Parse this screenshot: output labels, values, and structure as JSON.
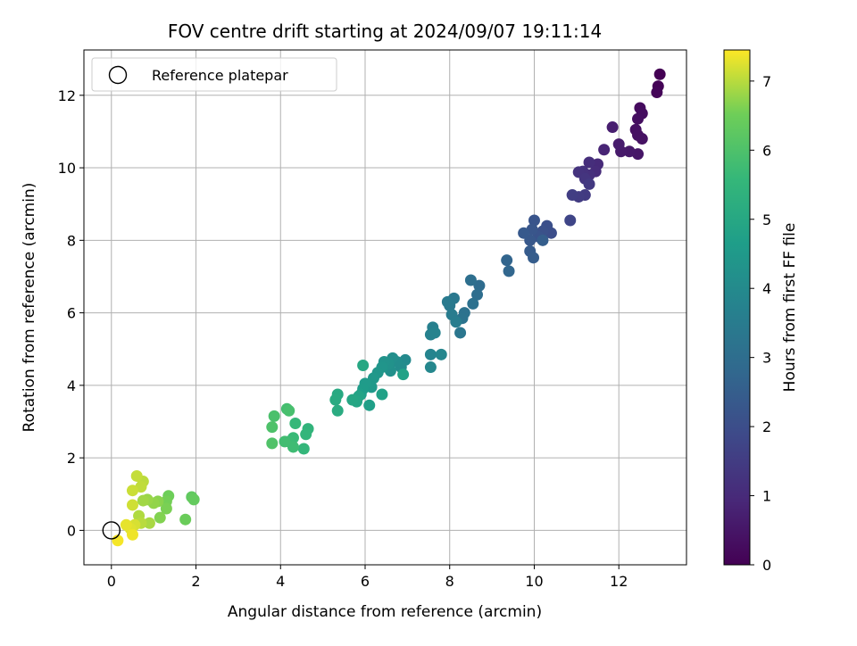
{
  "chart_data": {
    "type": "scatter",
    "title": "FOV centre drift starting at 2024/09/07 19:11:14",
    "xlabel": "Angular distance from reference (arcmin)",
    "ylabel": "Rotation from reference (arcmin)",
    "xlim": [
      -0.65,
      13.6
    ],
    "ylim": [
      -0.95,
      13.25
    ],
    "xticks": [
      0,
      2,
      4,
      6,
      8,
      10,
      12
    ],
    "yticks": [
      0,
      2,
      4,
      6,
      8,
      10,
      12
    ],
    "grid": true,
    "legend": {
      "placement": "top-left",
      "entries": [
        {
          "label": "Reference platepar",
          "marker": "open-circle"
        }
      ]
    },
    "reference_point": {
      "x": 0,
      "y": 0
    },
    "colorbar": {
      "label": "Hours from first FF file",
      "colormap": "viridis",
      "range": [
        0,
        7.45
      ],
      "ticks": [
        0,
        1,
        2,
        3,
        4,
        5,
        6,
        7
      ]
    },
    "series": [
      {
        "points": [
          {
            "x": 12.97,
            "y": 12.58,
            "c": 0.0
          },
          {
            "x": 12.93,
            "y": 12.25,
            "c": 0.05
          },
          {
            "x": 12.9,
            "y": 12.08,
            "c": 0.1
          },
          {
            "x": 12.5,
            "y": 11.65,
            "c": 0.25
          },
          {
            "x": 12.55,
            "y": 11.5,
            "c": 0.28
          },
          {
            "x": 12.45,
            "y": 11.35,
            "c": 0.3
          },
          {
            "x": 12.4,
            "y": 11.05,
            "c": 0.35
          },
          {
            "x": 12.45,
            "y": 10.9,
            "c": 0.38
          },
          {
            "x": 12.55,
            "y": 10.8,
            "c": 0.4
          },
          {
            "x": 12.45,
            "y": 10.38,
            "c": 0.5
          },
          {
            "x": 12.25,
            "y": 10.45,
            "c": 0.55
          },
          {
            "x": 12.05,
            "y": 10.45,
            "c": 0.6
          },
          {
            "x": 12.0,
            "y": 10.65,
            "c": 0.65
          },
          {
            "x": 11.85,
            "y": 11.12,
            "c": 0.7
          },
          {
            "x": 11.65,
            "y": 10.5,
            "c": 0.85
          },
          {
            "x": 11.5,
            "y": 10.1,
            "c": 1.0
          },
          {
            "x": 11.45,
            "y": 9.9,
            "c": 1.05
          },
          {
            "x": 11.3,
            "y": 10.15,
            "c": 1.1
          },
          {
            "x": 11.3,
            "y": 9.8,
            "c": 1.15
          },
          {
            "x": 11.15,
            "y": 9.9,
            "c": 1.2
          },
          {
            "x": 11.05,
            "y": 9.88,
            "c": 1.25
          },
          {
            "x": 11.2,
            "y": 9.7,
            "c": 1.3
          },
          {
            "x": 11.3,
            "y": 9.55,
            "c": 1.4
          },
          {
            "x": 11.2,
            "y": 9.25,
            "c": 1.45
          },
          {
            "x": 11.05,
            "y": 9.2,
            "c": 1.5
          },
          {
            "x": 10.9,
            "y": 9.25,
            "c": 1.55
          },
          {
            "x": 10.85,
            "y": 8.55,
            "c": 1.75
          },
          {
            "x": 10.4,
            "y": 8.2,
            "c": 2.0
          },
          {
            "x": 10.3,
            "y": 8.4,
            "c": 2.05
          },
          {
            "x": 10.2,
            "y": 8.25,
            "c": 2.1
          },
          {
            "x": 10.1,
            "y": 8.1,
            "c": 2.15
          },
          {
            "x": 10.0,
            "y": 8.55,
            "c": 2.2
          },
          {
            "x": 9.95,
            "y": 8.3,
            "c": 2.25
          },
          {
            "x": 9.9,
            "y": 8.0,
            "c": 2.3
          },
          {
            "x": 9.75,
            "y": 8.2,
            "c": 2.35
          },
          {
            "x": 9.9,
            "y": 7.7,
            "c": 2.4
          },
          {
            "x": 9.98,
            "y": 7.52,
            "c": 2.45
          },
          {
            "x": 10.2,
            "y": 8.0,
            "c": 2.5
          },
          {
            "x": 9.35,
            "y": 7.45,
            "c": 2.7
          },
          {
            "x": 9.4,
            "y": 7.15,
            "c": 2.75
          },
          {
            "x": 8.7,
            "y": 6.75,
            "c": 2.95
          },
          {
            "x": 8.65,
            "y": 6.5,
            "c": 3.0
          },
          {
            "x": 8.5,
            "y": 6.9,
            "c": 3.05
          },
          {
            "x": 8.55,
            "y": 6.25,
            "c": 3.1
          },
          {
            "x": 8.35,
            "y": 6.0,
            "c": 3.15
          },
          {
            "x": 8.3,
            "y": 5.85,
            "c": 3.2
          },
          {
            "x": 8.25,
            "y": 5.45,
            "c": 3.3
          },
          {
            "x": 8.1,
            "y": 6.4,
            "c": 3.35
          },
          {
            "x": 8.0,
            "y": 6.2,
            "c": 3.4
          },
          {
            "x": 7.95,
            "y": 6.3,
            "c": 3.45
          },
          {
            "x": 8.05,
            "y": 5.95,
            "c": 3.5
          },
          {
            "x": 8.15,
            "y": 5.75,
            "c": 3.55
          },
          {
            "x": 7.6,
            "y": 5.6,
            "c": 3.65
          },
          {
            "x": 7.55,
            "y": 5.4,
            "c": 3.7
          },
          {
            "x": 7.65,
            "y": 5.45,
            "c": 3.75
          },
          {
            "x": 7.55,
            "y": 4.85,
            "c": 3.8
          },
          {
            "x": 7.8,
            "y": 4.85,
            "c": 3.85
          },
          {
            "x": 7.55,
            "y": 4.5,
            "c": 3.9
          },
          {
            "x": 6.95,
            "y": 4.7,
            "c": 4.0
          },
          {
            "x": 6.85,
            "y": 4.5,
            "c": 4.05
          },
          {
            "x": 6.75,
            "y": 4.65,
            "c": 4.1
          },
          {
            "x": 6.65,
            "y": 4.75,
            "c": 4.15
          },
          {
            "x": 6.6,
            "y": 4.4,
            "c": 4.2
          },
          {
            "x": 6.55,
            "y": 4.6,
            "c": 4.25
          },
          {
            "x": 6.45,
            "y": 4.65,
            "c": 4.3
          },
          {
            "x": 6.4,
            "y": 4.5,
            "c": 4.35
          },
          {
            "x": 6.3,
            "y": 4.35,
            "c": 4.4
          },
          {
            "x": 6.2,
            "y": 4.2,
            "c": 4.45
          },
          {
            "x": 6.15,
            "y": 3.95,
            "c": 4.5
          },
          {
            "x": 6.0,
            "y": 4.05,
            "c": 4.55
          },
          {
            "x": 5.95,
            "y": 3.9,
            "c": 4.6
          },
          {
            "x": 5.9,
            "y": 3.75,
            "c": 4.65
          },
          {
            "x": 6.1,
            "y": 3.45,
            "c": 4.7
          },
          {
            "x": 6.4,
            "y": 3.75,
            "c": 4.75
          },
          {
            "x": 6.9,
            "y": 4.3,
            "c": 4.8
          },
          {
            "x": 5.85,
            "y": 3.7,
            "c": 4.85
          },
          {
            "x": 5.8,
            "y": 3.55,
            "c": 4.9
          },
          {
            "x": 5.7,
            "y": 3.6,
            "c": 4.95
          },
          {
            "x": 5.95,
            "y": 4.55,
            "c": 5.0
          },
          {
            "x": 5.35,
            "y": 3.75,
            "c": 5.05
          },
          {
            "x": 5.3,
            "y": 3.6,
            "c": 5.1
          },
          {
            "x": 5.35,
            "y": 3.3,
            "c": 5.15
          },
          {
            "x": 4.65,
            "y": 2.8,
            "c": 5.45
          },
          {
            "x": 4.6,
            "y": 2.65,
            "c": 5.5
          },
          {
            "x": 4.55,
            "y": 2.25,
            "c": 5.55
          },
          {
            "x": 4.35,
            "y": 2.95,
            "c": 5.6
          },
          {
            "x": 4.3,
            "y": 2.55,
            "c": 5.65
          },
          {
            "x": 4.2,
            "y": 2.45,
            "c": 5.7
          },
          {
            "x": 4.3,
            "y": 2.3,
            "c": 5.75
          },
          {
            "x": 4.1,
            "y": 2.45,
            "c": 5.8
          },
          {
            "x": 4.15,
            "y": 3.35,
            "c": 5.85
          },
          {
            "x": 4.2,
            "y": 3.3,
            "c": 5.9
          },
          {
            "x": 3.85,
            "y": 3.15,
            "c": 5.95
          },
          {
            "x": 3.8,
            "y": 2.85,
            "c": 6.0
          },
          {
            "x": 3.8,
            "y": 2.4,
            "c": 6.05
          },
          {
            "x": 1.9,
            "y": 0.92,
            "c": 6.3
          },
          {
            "x": 1.95,
            "y": 0.85,
            "c": 6.35
          },
          {
            "x": 1.75,
            "y": 0.3,
            "c": 6.45
          },
          {
            "x": 1.35,
            "y": 0.95,
            "c": 6.5
          },
          {
            "x": 1.3,
            "y": 0.8,
            "c": 6.55
          },
          {
            "x": 1.3,
            "y": 0.6,
            "c": 6.6
          },
          {
            "x": 1.15,
            "y": 0.35,
            "c": 6.65
          },
          {
            "x": 1.1,
            "y": 0.8,
            "c": 6.7
          },
          {
            "x": 1.0,
            "y": 0.75,
            "c": 6.75
          },
          {
            "x": 0.85,
            "y": 0.85,
            "c": 6.8
          },
          {
            "x": 0.75,
            "y": 0.82,
            "c": 6.85
          },
          {
            "x": 0.9,
            "y": 0.2,
            "c": 6.9
          },
          {
            "x": 0.65,
            "y": 0.4,
            "c": 6.95
          },
          {
            "x": 0.7,
            "y": 0.2,
            "c": 7.0
          },
          {
            "x": 0.75,
            "y": 1.35,
            "c": 7.02
          },
          {
            "x": 0.7,
            "y": 1.2,
            "c": 7.05
          },
          {
            "x": 0.6,
            "y": 1.5,
            "c": 7.08
          },
          {
            "x": 0.5,
            "y": 1.1,
            "c": 7.12
          },
          {
            "x": 0.5,
            "y": 0.7,
            "c": 7.15
          },
          {
            "x": 0.55,
            "y": 0.15,
            "c": 7.2
          },
          {
            "x": 0.45,
            "y": 0.05,
            "c": 7.25
          },
          {
            "x": 0.35,
            "y": 0.15,
            "c": 7.3
          },
          {
            "x": 0.5,
            "y": -0.12,
            "c": 7.35
          },
          {
            "x": 0.15,
            "y": -0.28,
            "c": 7.4
          }
        ]
      }
    ]
  }
}
